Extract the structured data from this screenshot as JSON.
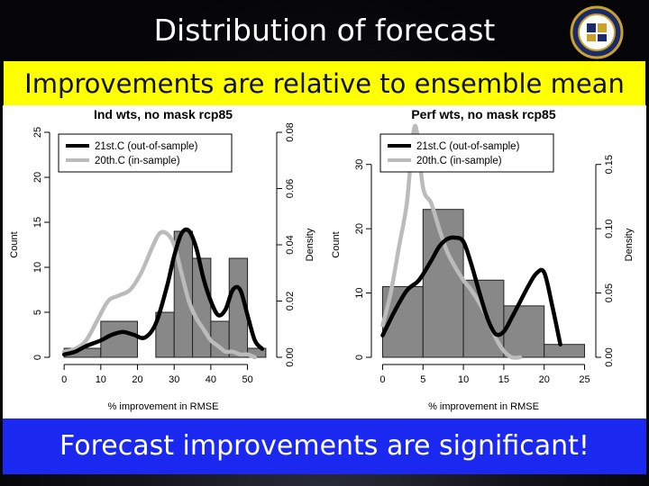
{
  "slide": {
    "title": "Distribution of forecast",
    "banner": "Improvements are relative to ensemble mean",
    "footer": "Forecast improvements are significant!"
  },
  "colors": {
    "banner_bg": "#ffff00",
    "footer_bg": "#1a28f0",
    "bar_fill": "#888888",
    "line_21st": "#000000",
    "line_20th": "#bbbbbb"
  },
  "chart_data": [
    {
      "type": "bar",
      "title": "Ind wts, no mask rcp85",
      "xlabel": "% improvement in RMSE",
      "ylabel": "Count",
      "y2label": "Density",
      "xlim": [
        -2,
        56
      ],
      "ylim": [
        0,
        25
      ],
      "y2lim": [
        0,
        0.08
      ],
      "x_ticks": [
        "0",
        "10",
        "20",
        "30",
        "40",
        "50"
      ],
      "y_ticks": [
        "0",
        "5",
        "10",
        "15",
        "20",
        "25"
      ],
      "y2_ticks": [
        "0.00",
        "0.02",
        "0.04",
        "0.06",
        "0.08"
      ],
      "bins": [
        {
          "x0": 0,
          "x1": 10,
          "count": 1
        },
        {
          "x0": 10,
          "x1": 20,
          "count": 4
        },
        {
          "x0": 20,
          "x1": 25,
          "count": 0
        },
        {
          "x0": 25,
          "x1": 30,
          "count": 5
        },
        {
          "x0": 30,
          "x1": 35,
          "count": 14
        },
        {
          "x0": 35,
          "x1": 40,
          "count": 11
        },
        {
          "x0": 40,
          "x1": 45,
          "count": 4
        },
        {
          "x0": 45,
          "x1": 50,
          "count": 11
        },
        {
          "x0": 50,
          "x1": 55,
          "count": 1
        }
      ],
      "series": [
        {
          "name": "21st.C (out-of-sample)",
          "color": "#000000",
          "x": [
            0,
            3,
            6,
            10,
            13,
            16,
            19,
            22,
            25,
            28,
            30,
            32,
            34,
            36,
            38,
            40,
            42,
            44,
            46,
            48,
            50,
            52,
            54
          ],
          "y": [
            0.001,
            0.002,
            0.004,
            0.006,
            0.008,
            0.009,
            0.008,
            0.007,
            0.012,
            0.025,
            0.036,
            0.044,
            0.045,
            0.039,
            0.028,
            0.02,
            0.015,
            0.017,
            0.024,
            0.024,
            0.015,
            0.006,
            0.003
          ]
        },
        {
          "name": "20th.C (in-sample)",
          "color": "#bbbbbb",
          "x": [
            0,
            3,
            6,
            9,
            12,
            15,
            18,
            21,
            24,
            26,
            28,
            30,
            32,
            34,
            36,
            38,
            40,
            42,
            44,
            46,
            48,
            50,
            52
          ],
          "y": [
            0.002,
            0.003,
            0.006,
            0.013,
            0.02,
            0.022,
            0.024,
            0.03,
            0.039,
            0.044,
            0.044,
            0.04,
            0.03,
            0.02,
            0.014,
            0.01,
            0.006,
            0.004,
            0.002,
            0.002,
            0.001,
            0.001,
            0.0
          ]
        }
      ],
      "legend": "top-left"
    },
    {
      "type": "bar",
      "title": "Perf wts, no mask rcp85",
      "xlabel": "% improvement in RMSE",
      "ylabel": "Count",
      "y2label": "Density",
      "xlim": [
        -0.5,
        25.5
      ],
      "ylim": [
        0,
        35
      ],
      "y2lim": [
        0,
        0.175
      ],
      "x_ticks": [
        "0",
        "5",
        "10",
        "15",
        "20",
        "25"
      ],
      "y_ticks": [
        "0",
        "10",
        "20",
        "30"
      ],
      "y2_ticks": [
        "0.00",
        "0.05",
        "0.10",
        "0.15"
      ],
      "bins": [
        {
          "x0": 0,
          "x1": 5,
          "count": 11
        },
        {
          "x0": 5,
          "x1": 10,
          "count": 23
        },
        {
          "x0": 10,
          "x1": 15,
          "count": 12
        },
        {
          "x0": 15,
          "x1": 20,
          "count": 8
        },
        {
          "x0": 20,
          "x1": 25,
          "count": 2
        }
      ],
      "series": [
        {
          "name": "21st.C (out-of-sample)",
          "color": "#000000",
          "x": [
            0,
            1.5,
            3,
            4.5,
            6,
            7,
            8,
            9,
            10,
            11,
            12,
            13,
            14,
            15,
            16,
            17,
            18,
            19,
            20,
            21,
            22
          ],
          "y": [
            0.017,
            0.036,
            0.052,
            0.06,
            0.075,
            0.086,
            0.092,
            0.093,
            0.09,
            0.072,
            0.05,
            0.03,
            0.018,
            0.02,
            0.031,
            0.043,
            0.055,
            0.065,
            0.066,
            0.04,
            0.01
          ]
        },
        {
          "name": "20th.C (in-sample)",
          "color": "#bbbbbb",
          "x": [
            0,
            1,
            2,
            3,
            4,
            5,
            6,
            7,
            8,
            9,
            10,
            11,
            12,
            13,
            14,
            15,
            16,
            17
          ],
          "y": [
            0.025,
            0.05,
            0.085,
            0.12,
            0.18,
            0.132,
            0.12,
            0.1,
            0.082,
            0.07,
            0.06,
            0.052,
            0.042,
            0.03,
            0.015,
            0.005,
            0.0,
            0.0
          ]
        }
      ],
      "legend": "top-left"
    }
  ]
}
